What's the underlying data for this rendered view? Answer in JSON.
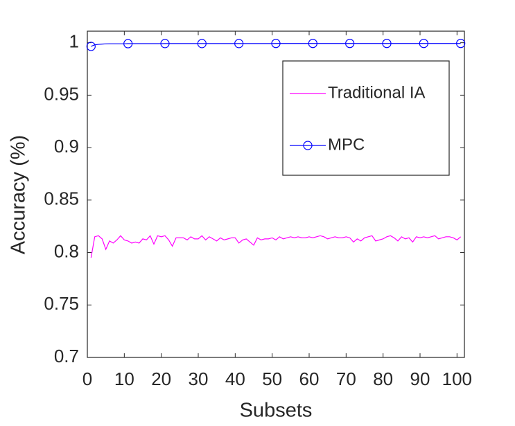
{
  "chart_data": {
    "type": "line",
    "xlabel": "Subsets",
    "ylabel": "Accuracy (%)",
    "x": [
      1,
      2,
      3,
      4,
      5,
      6,
      7,
      8,
      9,
      10,
      11,
      12,
      13,
      14,
      15,
      16,
      17,
      18,
      19,
      20,
      21,
      22,
      23,
      24,
      25,
      26,
      27,
      28,
      29,
      30,
      31,
      32,
      33,
      34,
      35,
      36,
      37,
      38,
      39,
      40,
      41,
      42,
      43,
      44,
      45,
      46,
      47,
      48,
      49,
      50,
      51,
      52,
      53,
      54,
      55,
      56,
      57,
      58,
      59,
      60,
      61,
      62,
      63,
      64,
      65,
      66,
      67,
      68,
      69,
      70,
      71,
      72,
      73,
      74,
      75,
      76,
      77,
      78,
      79,
      80,
      81,
      82,
      83,
      84,
      85,
      86,
      87,
      88,
      89,
      90,
      91,
      92,
      93,
      94,
      95,
      96,
      97,
      98,
      99,
      100,
      101
    ],
    "series": [
      {
        "name": "Traditional IA",
        "color": "#ff00ff",
        "marker": "none",
        "values": [
          0.795,
          0.815,
          0.816,
          0.813,
          0.803,
          0.811,
          0.809,
          0.812,
          0.816,
          0.812,
          0.811,
          0.809,
          0.81,
          0.809,
          0.813,
          0.812,
          0.816,
          0.808,
          0.816,
          0.815,
          0.816,
          0.812,
          0.806,
          0.814,
          0.814,
          0.814,
          0.812,
          0.815,
          0.813,
          0.813,
          0.816,
          0.812,
          0.815,
          0.813,
          0.811,
          0.814,
          0.812,
          0.813,
          0.814,
          0.814,
          0.809,
          0.812,
          0.813,
          0.81,
          0.807,
          0.814,
          0.812,
          0.813,
          0.813,
          0.814,
          0.812,
          0.815,
          0.813,
          0.814,
          0.815,
          0.814,
          0.815,
          0.814,
          0.814,
          0.815,
          0.814,
          0.815,
          0.816,
          0.815,
          0.813,
          0.814,
          0.815,
          0.814,
          0.814,
          0.815,
          0.814,
          0.81,
          0.813,
          0.811,
          0.814,
          0.815,
          0.816,
          0.811,
          0.812,
          0.813,
          0.815,
          0.816,
          0.814,
          0.811,
          0.815,
          0.813,
          0.814,
          0.81,
          0.815,
          0.814,
          0.815,
          0.814,
          0.815,
          0.816,
          0.813,
          0.814,
          0.815,
          0.815,
          0.814,
          0.812,
          0.815
        ]
      },
      {
        "name": "MPC",
        "color": "#0000ff",
        "marker": "circle",
        "values": [
          0.9965,
          0.998,
          0.9984,
          0.9987,
          0.9989,
          0.999,
          0.999,
          0.999,
          0.999,
          0.999,
          0.9991,
          0.9991,
          0.9991,
          0.9991,
          0.9991,
          0.9991,
          0.9991,
          0.9991,
          0.9991,
          0.9991,
          0.9992,
          0.9992,
          0.9992,
          0.9992,
          0.9992,
          0.9992,
          0.9992,
          0.9992,
          0.9992,
          0.9992,
          0.9992,
          0.9992,
          0.9992,
          0.9992,
          0.9992,
          0.9992,
          0.9992,
          0.9992,
          0.9992,
          0.9992,
          0.9992,
          0.9992,
          0.9992,
          0.9992,
          0.9992,
          0.9992,
          0.9992,
          0.9992,
          0.9992,
          0.9992,
          0.9993,
          0.9993,
          0.9993,
          0.9993,
          0.9993,
          0.9993,
          0.9993,
          0.9993,
          0.9993,
          0.9993,
          0.9993,
          0.9993,
          0.9993,
          0.9993,
          0.9993,
          0.9993,
          0.9993,
          0.9993,
          0.9993,
          0.9993,
          0.9993,
          0.9993,
          0.9993,
          0.9993,
          0.9993,
          0.9993,
          0.9993,
          0.9993,
          0.9993,
          0.9993,
          0.9993,
          0.9993,
          0.9993,
          0.9993,
          0.9993,
          0.9993,
          0.9993,
          0.9993,
          0.9993,
          0.9993,
          0.9993,
          0.9993,
          0.9993,
          0.9993,
          0.9993,
          0.9993,
          0.9993,
          0.9993,
          0.9993,
          0.9993,
          0.9993
        ]
      }
    ],
    "xlim": [
      0,
      102
    ],
    "ylim": [
      0.7,
      1.011
    ],
    "xticks": [
      0,
      10,
      20,
      30,
      40,
      50,
      60,
      70,
      80,
      90,
      100
    ],
    "yticks": [
      0.7,
      0.75,
      0.8,
      0.85,
      0.9,
      0.95,
      1
    ],
    "grid": false,
    "legend": "northeast"
  }
}
